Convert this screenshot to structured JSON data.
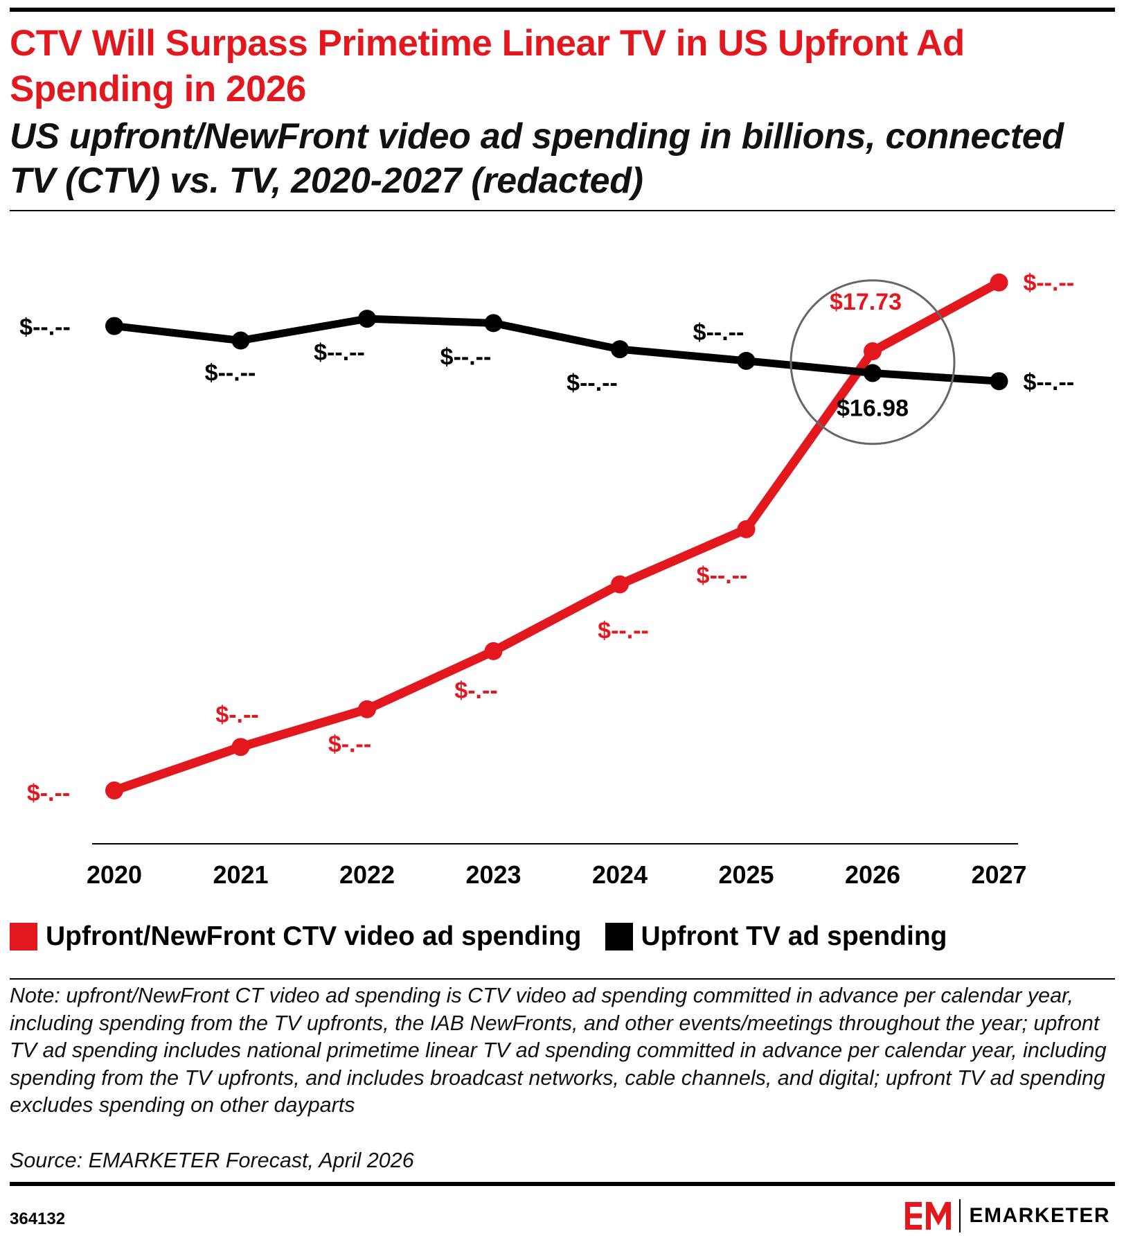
{
  "header": {
    "title": "CTV Will Surpass Primetime Linear TV in US Upfront Ad Spending in 2026",
    "subtitle": "US upfront/NewFront video ad spending in billions, connected TV (CTV) vs. TV, 2020-2027 (redacted)"
  },
  "colors": {
    "ctv": "#e3181e",
    "tv": "#000000",
    "highlight_circle": "#666666"
  },
  "chart_data": {
    "type": "line",
    "title": "CTV Will Surpass Primetime Linear TV in US Upfront Ad Spending in 2026",
    "subtitle": "US upfront/NewFront video ad spending in billions, connected TV (CTV) vs. TV, 2020-2027 (redacted)",
    "categories": [
      "2020",
      "2021",
      "2022",
      "2023",
      "2024",
      "2025",
      "2026",
      "2027"
    ],
    "ylim": [
      0,
      21
    ],
    "grid": false,
    "legend_position": "bottom-left",
    "series": [
      {
        "name": "Upfront/NewFront CTV video ad spending",
        "color": "#e3181e",
        "values": [
          2.6,
          4.1,
          5.4,
          7.4,
          9.7,
          11.6,
          17.73,
          20.1
        ],
        "labels": [
          "$-.--",
          "$-.--",
          "$-.--",
          "$-.--",
          "$--.--",
          "$--.--",
          "$17.73",
          "$--.--"
        ]
      },
      {
        "name": "Upfront TV ad spending",
        "color": "#000000",
        "values": [
          18.6,
          18.1,
          18.85,
          18.7,
          17.8,
          17.4,
          16.98,
          16.7
        ],
        "labels": [
          "$--.--",
          "$--.--",
          "$--.--",
          "$--.--",
          "$--.--",
          "$--.--",
          "$16.98",
          "$--.--"
        ]
      }
    ],
    "highlight": {
      "category": "2026"
    }
  },
  "legend": {
    "items": [
      {
        "label": "Upfront/NewFront CTV video ad spending",
        "color": "#e3181e"
      },
      {
        "label": "Upfront TV ad spending",
        "color": "#000000"
      }
    ]
  },
  "footer": {
    "note": "Note: upfront/NewFront CT video ad spending is CTV video ad spending committed in advance per calendar year, including spending from the TV upfronts, the IAB NewFronts, and other events/meetings throughout the year; upfront TV ad spending includes national primetime linear TV ad spending committed in advance per calendar year, including spending from the TV upfronts, and includes broadcast networks, cable channels, and digital; upfront TV ad spending excludes spending on other dayparts",
    "source": "Source: EMARKETER Forecast, April 2026",
    "chart_id": "364132",
    "brand": "EMARKETER"
  }
}
